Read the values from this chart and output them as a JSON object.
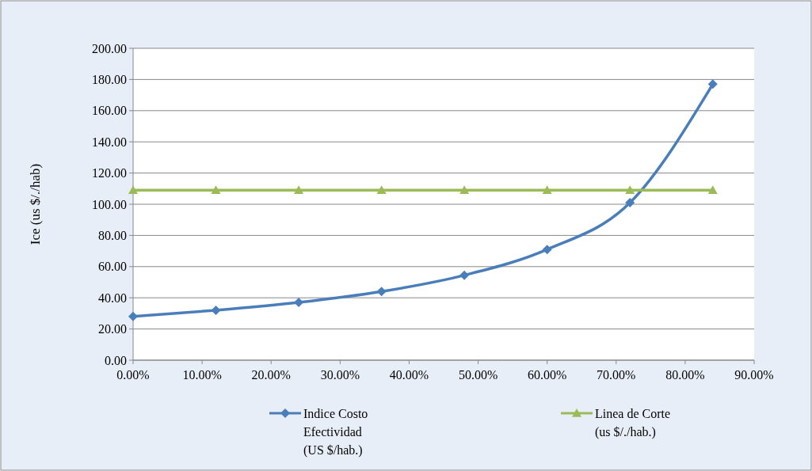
{
  "chart_data": {
    "type": "line",
    "ylabel": "Ice (us $/./hab)",
    "x": [
      0,
      12,
      24,
      36,
      48,
      60,
      72,
      84
    ],
    "series": [
      {
        "name": "Indice Costo Efectividad (US $/hab.)",
        "color": "#4a7ebb",
        "marker": "diamond",
        "values": [
          28,
          32,
          37,
          44,
          54.5,
          71,
          101,
          177
        ]
      },
      {
        "name": "Linea de Corte (us $/./hab.)",
        "color": "#9bbb59",
        "marker": "triangle",
        "values": [
          109,
          109,
          109,
          109,
          109,
          109,
          109,
          109
        ]
      }
    ],
    "xlim": [
      0,
      90
    ],
    "xticks": [
      {
        "value": 0,
        "label": "0.00%"
      },
      {
        "value": 10,
        "label": "10.00%"
      },
      {
        "value": 20,
        "label": "20.00%"
      },
      {
        "value": 30,
        "label": "30.00%"
      },
      {
        "value": 40,
        "label": "40.00%"
      },
      {
        "value": 50,
        "label": "50.00%"
      },
      {
        "value": 60,
        "label": "60.00%"
      },
      {
        "value": 70,
        "label": "70.00%"
      },
      {
        "value": 80,
        "label": "80.00%"
      },
      {
        "value": 90,
        "label": "90.00%"
      }
    ],
    "ylim": [
      0,
      200
    ],
    "yticks": [
      {
        "value": 0,
        "label": "0.00"
      },
      {
        "value": 20,
        "label": "20.00"
      },
      {
        "value": 40,
        "label": "40.00"
      },
      {
        "value": 60,
        "label": "60.00"
      },
      {
        "value": 80,
        "label": "80.00"
      },
      {
        "value": 100,
        "label": "100.00"
      },
      {
        "value": 120,
        "label": "120.00"
      },
      {
        "value": 140,
        "label": "140.00"
      },
      {
        "value": 160,
        "label": "160.00"
      },
      {
        "value": 180,
        "label": "180.00"
      },
      {
        "value": 200,
        "label": "200.00"
      }
    ],
    "grid": "y",
    "legend": "bottom",
    "line_style": "solid"
  }
}
